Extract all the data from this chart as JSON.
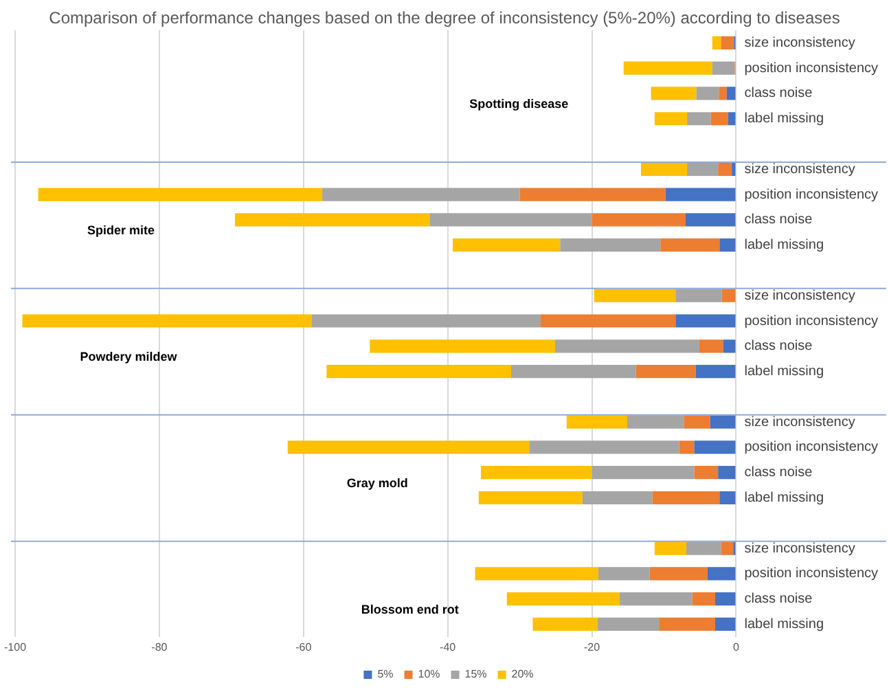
{
  "chart_data": {
    "type": "bar",
    "orientation": "horizontal",
    "stacked": true,
    "title": "Comparison of performance changes based on the degree of inconsistency (5%-20%) according to diseases",
    "categories": [
      "size inconsistency",
      "position inconsistency",
      "class noise",
      "label missing",
      null,
      "size inconsistency",
      "position inconsistency",
      "class noise",
      "label missing",
      null,
      "size inconsistency",
      "position inconsistency",
      "class noise",
      "label missing",
      null,
      "size inconsistency",
      "position inconsistency",
      "class noise",
      "label missing",
      null,
      "size inconsistency",
      "position inconsistency",
      "class noise",
      "label missing"
    ],
    "series": [
      {
        "name": "5%",
        "color": "#4472c4",
        "values": [
          -0.3,
          null,
          -1.3,
          -1.1,
          null,
          -0.6,
          -9.8,
          -7.0,
          -2.3,
          null,
          null,
          -8.4,
          -1.8,
          -5.6,
          null,
          -3.6,
          -5.8,
          -2.5,
          -2.3,
          null,
          -0.4,
          -4.0,
          -2.9,
          -2.9
        ]
      },
      {
        "name": "10%",
        "color": "#ed7d31",
        "values": [
          -1.8,
          -0.2,
          -1.1,
          -2.4,
          null,
          -1.9,
          -20.2,
          -13.0,
          -8.2,
          null,
          -2.0,
          -18.7,
          -3.3,
          -8.3,
          null,
          -3.6,
          -2.1,
          -3.3,
          -9.3,
          null,
          -1.7,
          -8.0,
          -3.2,
          -7.8
        ]
      },
      {
        "name": "15%",
        "color": "#a5a5a5",
        "values": [
          null,
          -3.1,
          -3.1,
          -3.3,
          null,
          -4.3,
          -27.4,
          -22.5,
          -13.9,
          null,
          -6.4,
          -31.8,
          -20.0,
          -17.3,
          null,
          -7.9,
          -20.8,
          -14.2,
          -9.7,
          null,
          -4.8,
          -7.1,
          -10.1,
          -8.5
        ]
      },
      {
        "name": "20%",
        "color": "#ffc000",
        "values": [
          -1.2,
          -12.3,
          -6.3,
          -4.5,
          null,
          -6.4,
          -39.4,
          -27.0,
          -14.9,
          null,
          -11.3,
          -40.1,
          -25.7,
          -25.6,
          null,
          -8.4,
          -33.5,
          -15.4,
          -14.4,
          null,
          -4.4,
          -17.1,
          -15.6,
          -9.0
        ]
      }
    ],
    "xlim": [
      -100,
      0
    ],
    "xticks": [
      -100,
      -80,
      -60,
      -40,
      -20,
      0
    ],
    "grid": "x",
    "legend": "bottom",
    "annotations": [
      "Spotting disease",
      "Spider mite",
      "Powdery mildew",
      "Gray mold",
      "Blossom end rot"
    ]
  }
}
